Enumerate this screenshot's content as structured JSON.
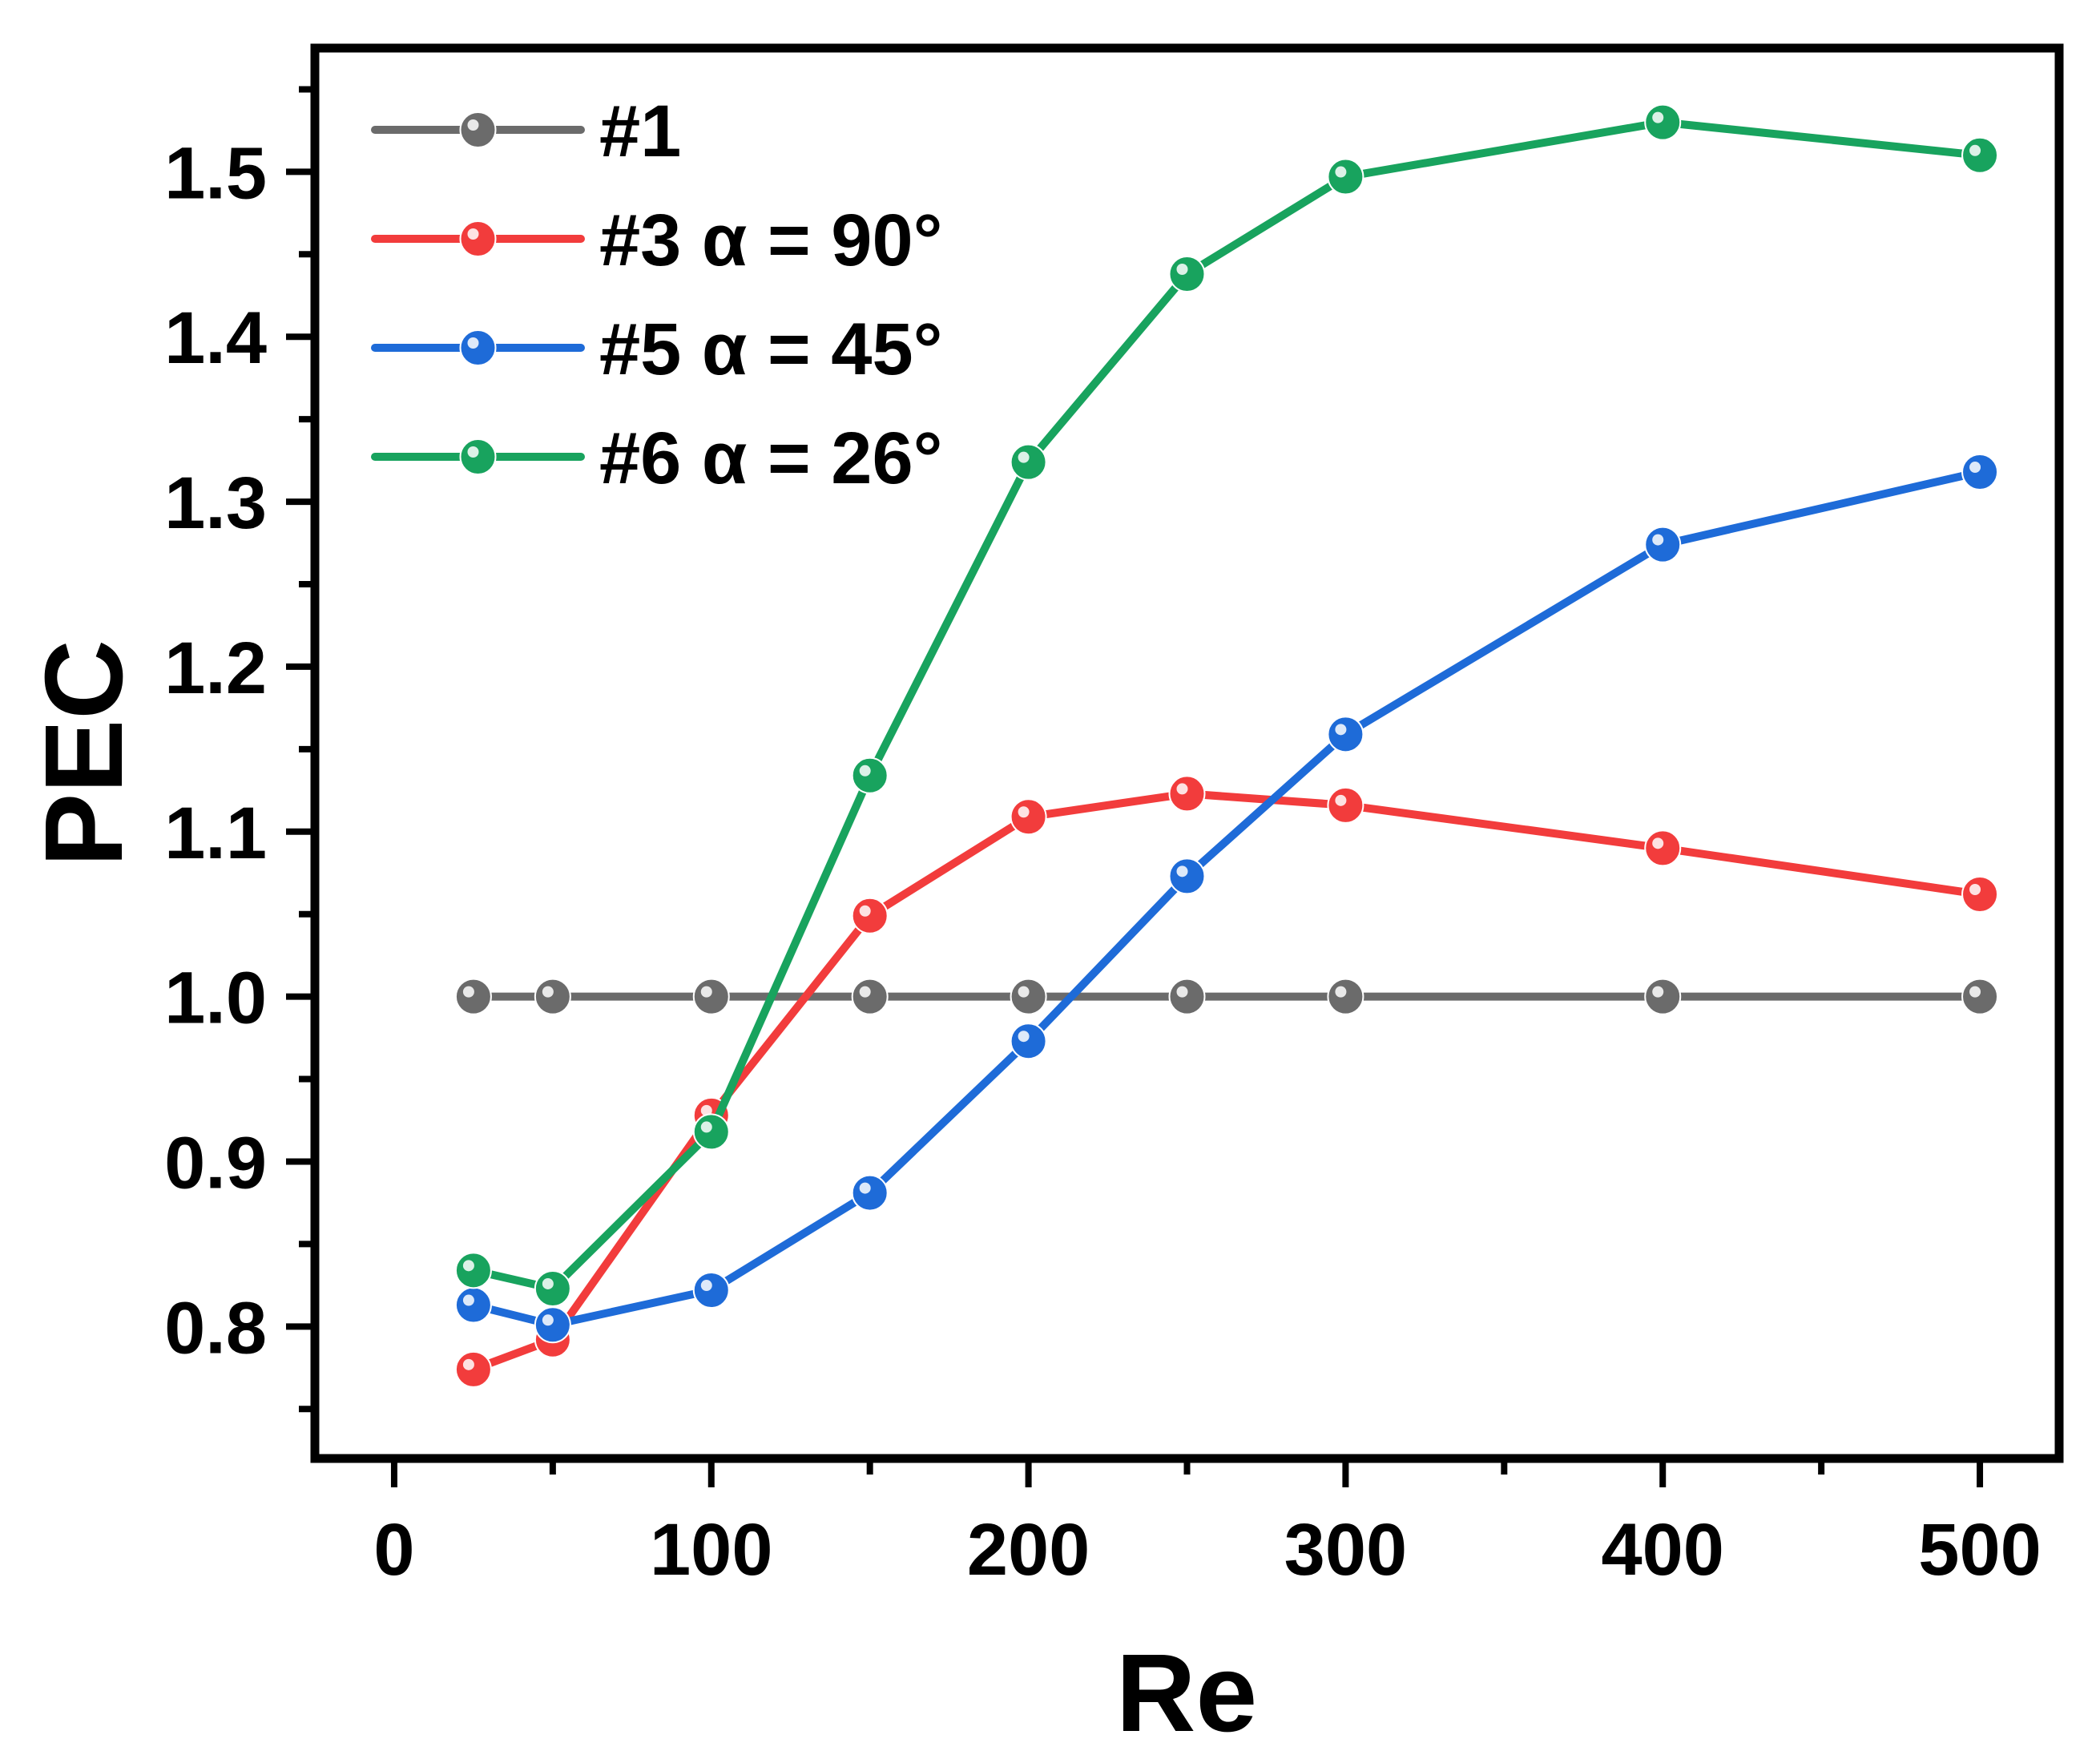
{
  "chart_data": {
    "type": "line",
    "title": "",
    "xlabel": "Re",
    "ylabel": "PEC",
    "xlim": [
      -25,
      525
    ],
    "ylim": [
      0.72,
      1.575
    ],
    "xticks": [
      0,
      100,
      200,
      300,
      400,
      500
    ],
    "xtick_labels": [
      "0",
      "100",
      "200",
      "300",
      "400",
      "500"
    ],
    "yticks": [
      0.8,
      0.9,
      1.0,
      1.1,
      1.2,
      1.3,
      1.4,
      1.5
    ],
    "ytick_labels": [
      "0.8",
      "0.9",
      "1.0",
      "1.1",
      "1.2",
      "1.3",
      "1.4",
      "1.5"
    ],
    "legend_position": "top-left",
    "grid": false,
    "series": [
      {
        "name": "#1",
        "color": "#6b6b6b",
        "x": [
          25,
          50,
          100,
          150,
          200,
          250,
          300,
          400,
          500
        ],
        "y": [
          1.0,
          1.0,
          1.0,
          1.0,
          1.0,
          1.0,
          1.0,
          1.0,
          1.0
        ]
      },
      {
        "name": "#3 α = 90°",
        "color": "#f23c3c",
        "x": [
          25,
          50,
          100,
          150,
          200,
          250,
          300,
          400,
          500
        ],
        "y": [
          0.774,
          0.792,
          0.928,
          1.049,
          1.109,
          1.123,
          1.116,
          1.09,
          1.062
        ]
      },
      {
        "name": "#5 α = 45°",
        "color": "#1e6bd8",
        "x": [
          25,
          50,
          100,
          150,
          200,
          250,
          300,
          400,
          500
        ],
        "y": [
          0.813,
          0.801,
          0.822,
          0.881,
          0.973,
          1.073,
          1.159,
          1.274,
          1.318
        ]
      },
      {
        "name": "#6 α = 26°",
        "color": "#18a35e",
        "x": [
          25,
          50,
          100,
          150,
          200,
          250,
          300,
          400,
          500
        ],
        "y": [
          0.834,
          0.823,
          0.918,
          1.134,
          1.324,
          1.438,
          1.497,
          1.53,
          1.51
        ]
      }
    ]
  }
}
